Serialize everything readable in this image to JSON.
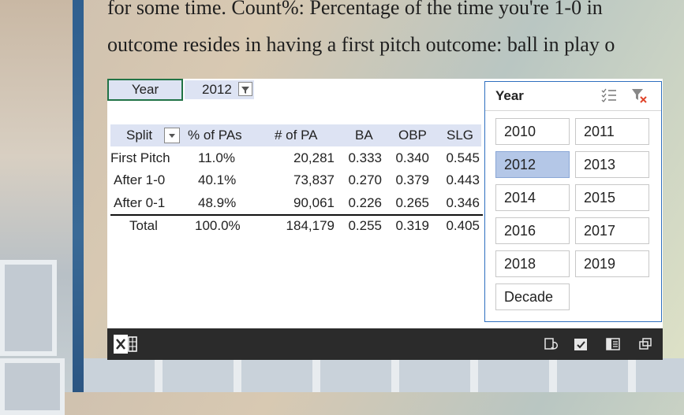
{
  "article": {
    "line1": "for some time. Count%: Percentage of the time you're 1-0 in",
    "line2": "outcome resides in having a first pitch outcome: ball in play o"
  },
  "filter": {
    "label": "Year",
    "value": "2012"
  },
  "pivot": {
    "headers": [
      "Split",
      "% of PAs",
      "# of PA",
      "BA",
      "OBP",
      "SLG"
    ],
    "rows": [
      [
        "First Pitch",
        "11.0%",
        "20,281",
        "0.333",
        "0.340",
        "0.545"
      ],
      [
        "After 1-0",
        "40.1%",
        "73,837",
        "0.270",
        "0.379",
        "0.443"
      ],
      [
        "After 0-1",
        "48.9%",
        "90,061",
        "0.226",
        "0.265",
        "0.346"
      ],
      [
        "Total",
        "100.0%",
        "184,179",
        "0.255",
        "0.319",
        "0.405"
      ]
    ]
  },
  "slicer": {
    "title": "Year",
    "items": [
      "2010",
      "2011",
      "2012",
      "2013",
      "2014",
      "2015",
      "2016",
      "2017",
      "2018",
      "2019",
      "Decade"
    ],
    "selected": "2012",
    "icons": [
      "multi-select-icon",
      "clear-filter-icon"
    ]
  },
  "toolbar": {
    "icons": [
      "excel-logo-icon",
      "refresh-icon",
      "calculate-icon",
      "details-icon",
      "popout-icon"
    ]
  },
  "colors": {
    "accent": "#217346",
    "header_fill": "#dde3f3",
    "slicer_border": "#2f6fbf",
    "slicer_selected": "#b4c7e7",
    "toolbar": "#2b2b2b"
  }
}
